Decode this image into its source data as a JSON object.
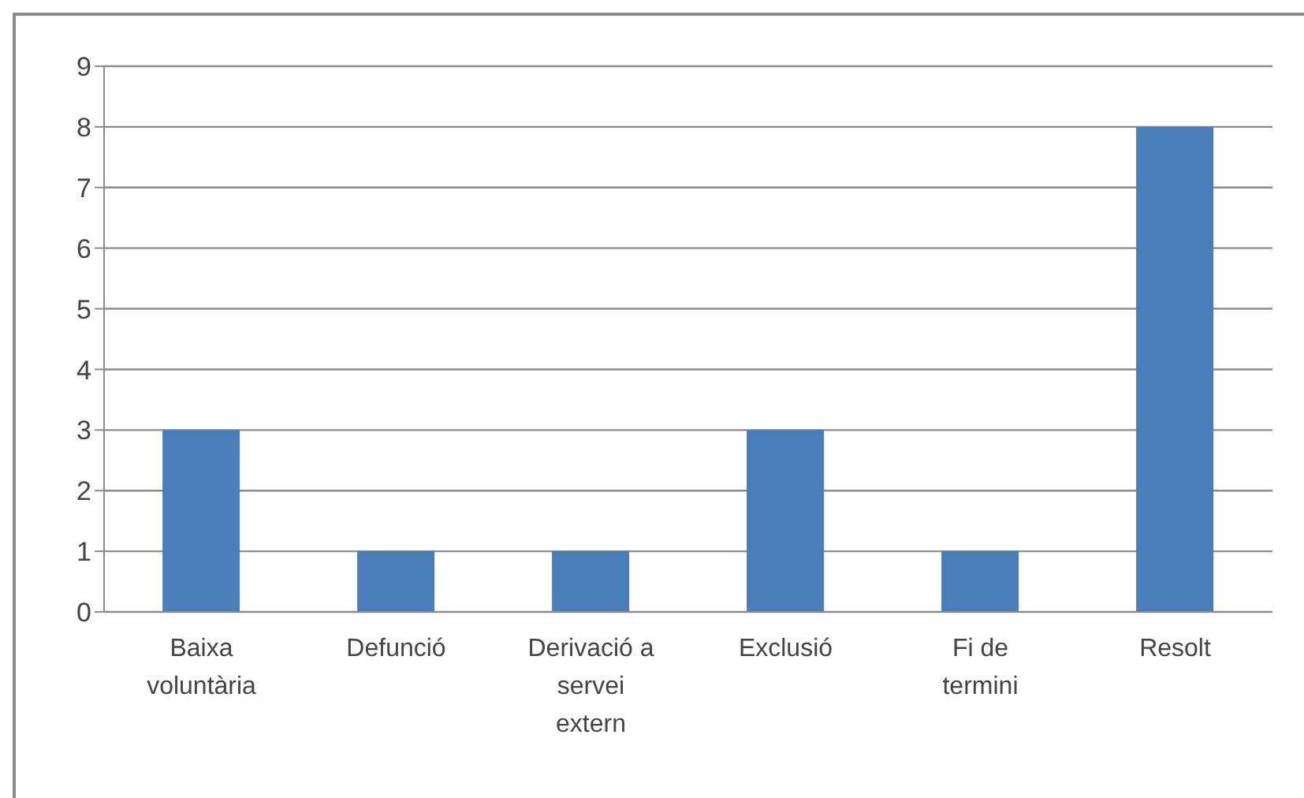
{
  "chart_data": {
    "type": "bar",
    "categories": [
      "Baixa voluntària",
      "Defunció",
      "Derivació a servei extern",
      "Exclusió",
      "Fi de termini",
      "Resolt"
    ],
    "values": [
      3,
      1,
      1,
      3,
      1,
      8
    ],
    "color": "#4a7ebb",
    "ylim": [
      0,
      9
    ],
    "yticks": [
      0,
      1,
      2,
      3,
      4,
      5,
      6,
      7,
      8,
      9
    ],
    "grid": "y"
  }
}
